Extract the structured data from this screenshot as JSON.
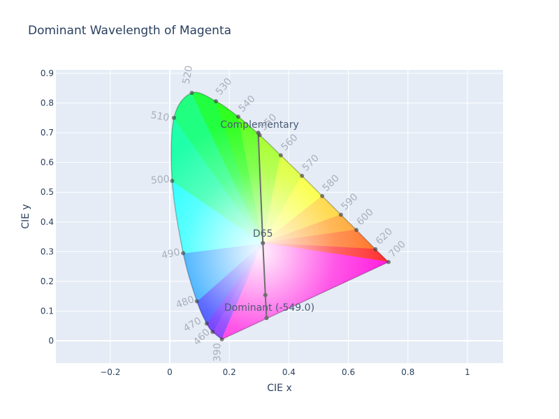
{
  "title": "Dominant Wavelength of Magenta",
  "chart_data": {
    "type": "scatter",
    "title": "Dominant Wavelength of Magenta",
    "xlabel": "CIE x",
    "ylabel": "CIE y",
    "xlim": [
      -0.38,
      1.12
    ],
    "ylim": [
      -0.075,
      0.915
    ],
    "x_ticks": [
      "-0.2",
      "0",
      "0.2",
      "0.4",
      "0.6",
      "0.8",
      "1"
    ],
    "y_ticks": [
      "0",
      "0.1",
      "0.2",
      "0.3",
      "0.4",
      "0.5",
      "0.6",
      "0.7",
      "0.8",
      "0.9"
    ],
    "grid": true,
    "spectral_locus_labels": [
      {
        "wl": "390",
        "x": 0.175,
        "y": 0.005
      },
      {
        "wl": "460",
        "x": 0.144,
        "y": 0.03
      },
      {
        "wl": "470",
        "x": 0.124,
        "y": 0.058
      },
      {
        "wl": "480",
        "x": 0.091,
        "y": 0.133
      },
      {
        "wl": "490",
        "x": 0.045,
        "y": 0.295
      },
      {
        "wl": "500",
        "x": 0.008,
        "y": 0.538
      },
      {
        "wl": "510",
        "x": 0.014,
        "y": 0.75
      },
      {
        "wl": "520",
        "x": 0.074,
        "y": 0.834
      },
      {
        "wl": "530",
        "x": 0.155,
        "y": 0.806
      },
      {
        "wl": "540",
        "x": 0.23,
        "y": 0.754
      },
      {
        "wl": "550",
        "x": 0.302,
        "y": 0.692
      },
      {
        "wl": "560",
        "x": 0.373,
        "y": 0.624
      },
      {
        "wl": "570",
        "x": 0.444,
        "y": 0.555
      },
      {
        "wl": "580",
        "x": 0.512,
        "y": 0.487
      },
      {
        "wl": "590",
        "x": 0.575,
        "y": 0.424
      },
      {
        "wl": "600",
        "x": 0.627,
        "y": 0.373
      },
      {
        "wl": "620",
        "x": 0.691,
        "y": 0.308
      },
      {
        "wl": "700",
        "x": 0.735,
        "y": 0.265
      }
    ],
    "line_points": [
      {
        "name": "Complementary",
        "x": 0.297,
        "y": 0.7
      },
      {
        "name": "D65",
        "x": 0.3127,
        "y": 0.329
      },
      {
        "name": "Magenta",
        "x": 0.321,
        "y": 0.154
      },
      {
        "name": "Dominant (-549.0)",
        "x": 0.325,
        "y": 0.077
      }
    ],
    "annotations": [
      "Complementary",
      "D65",
      "Dominant (-549.0)"
    ]
  }
}
